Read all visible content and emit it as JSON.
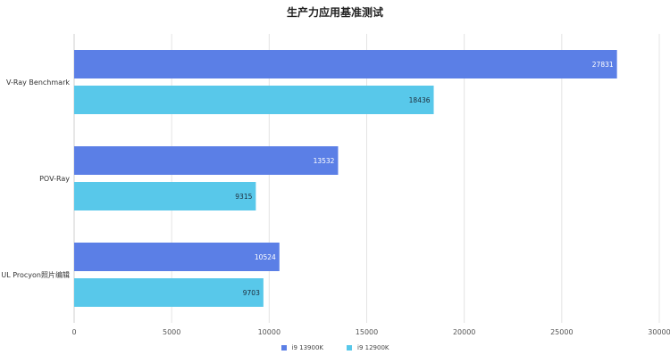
{
  "chart_data": {
    "type": "bar",
    "orientation": "horizontal",
    "title": "生产力应用基准测试",
    "categories": [
      "V-Ray Benchmark",
      "POV-Ray",
      "UL Procyon照片编辑"
    ],
    "series": [
      {
        "name": "i9 13900K",
        "color": "#5b7fe6",
        "values": [
          27831,
          13532,
          10524
        ]
      },
      {
        "name": "i9 12900K",
        "color": "#58c8ea",
        "values": [
          18436,
          9315,
          9703
        ]
      }
    ],
    "xlim": [
      0,
      30000
    ],
    "xticks": [
      "0",
      "5000",
      "10000",
      "15000",
      "20000",
      "25000",
      "30000"
    ],
    "xlabel": "",
    "ylabel": "",
    "grid": "vertical",
    "legend_position": "bottom",
    "data_labels": "inside-end"
  }
}
